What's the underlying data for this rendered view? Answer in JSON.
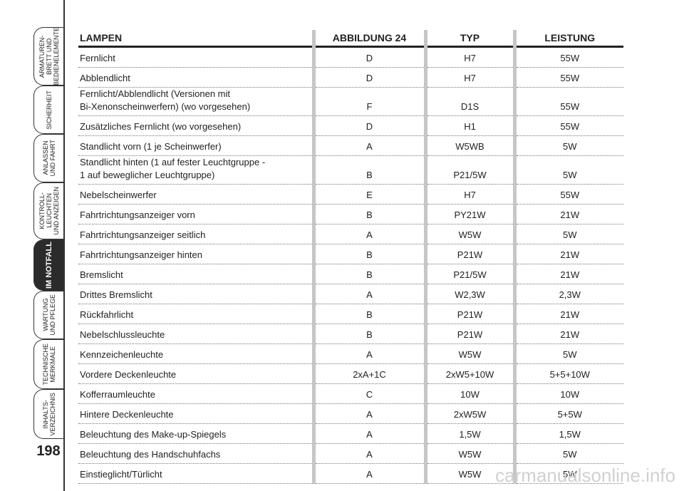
{
  "sidebar": {
    "tabs": [
      "ARMATUREN-\nBRETT UND\nBEDIENELEMENTE",
      "SICHERHEIT",
      "ANLASSEN\nUND FAHRT",
      "KONTROLL-\nLEUCHTEN\nUND ANZEIGEN",
      "IM NOTFALL",
      "WARTUNG\nUND PFLEGE",
      "TECHNISCHE\nMERKMALE",
      "INHALTS-\nVERZEICHNIS"
    ],
    "page_number": "198"
  },
  "table": {
    "header": [
      "LAMPEN",
      "ABBILDUNG 24",
      "TYP",
      "LEISTUNG"
    ],
    "rows": [
      [
        "Fernlicht",
        "D",
        "H7",
        "55W"
      ],
      [
        "Abblendlicht",
        "D",
        "H7",
        "55W"
      ],
      [
        "Fernlicht/Abblendlicht (Versionen mit\nBi-Xenonscheinwerfern) (wo vorgesehen)",
        "F",
        "D1S",
        "55W"
      ],
      [
        "Zusätzliches Fernlicht (wo vorgesehen)",
        "D",
        "H1",
        "55W"
      ],
      [
        "Standlicht vorn (1 je Scheinwerfer)",
        "A",
        "W5WB",
        "5W"
      ],
      [
        "Standlicht hinten (1 auf fester Leuchtgruppe -\n1 auf beweglicher Leuchtgruppe)",
        "B",
        "P21/5W",
        "5W"
      ],
      [
        "Nebelscheinwerfer",
        "E",
        "H7",
        "55W"
      ],
      [
        "Fahrtrichtungsanzeiger vorn",
        "B",
        "PY21W",
        "21W"
      ],
      [
        "Fahrtrichtungsanzeiger seitlich",
        "A",
        "W5W",
        "5W"
      ],
      [
        "Fahrtrichtungsanzeiger hinten",
        "B",
        "P21W",
        "21W"
      ],
      [
        "Bremslicht",
        "B",
        "P21/5W",
        "21W"
      ],
      [
        "Drittes Bremslicht",
        "A",
        "W2,3W",
        "2,3W"
      ],
      [
        "Rückfahrlicht",
        "B",
        "P21W",
        "21W"
      ],
      [
        "Nebelschlussleuchte",
        "B",
        "P21W",
        "21W"
      ],
      [
        "Kennzeichenleuchte",
        "A",
        "W5W",
        "5W"
      ],
      [
        "Vordere Deckenleuchte",
        "2xA+1C",
        "2xW5+10W",
        "5+5+10W"
      ],
      [
        "Kofferraumleuchte",
        "C",
        "10W",
        "10W"
      ],
      [
        "Hintere Deckenleuchte",
        "A",
        "2xW5W",
        "5+5W"
      ],
      [
        "Beleuchtung des Make-up-Spiegels",
        "A",
        "1,5W",
        "1,5W"
      ],
      [
        "Beleuchtung des Handschuhfachs",
        "A",
        "W5W",
        "5W"
      ],
      [
        "Einstieglicht/Türlicht",
        "A",
        "W5W",
        "5W"
      ]
    ]
  },
  "watermark": "carmanualsonline.info"
}
